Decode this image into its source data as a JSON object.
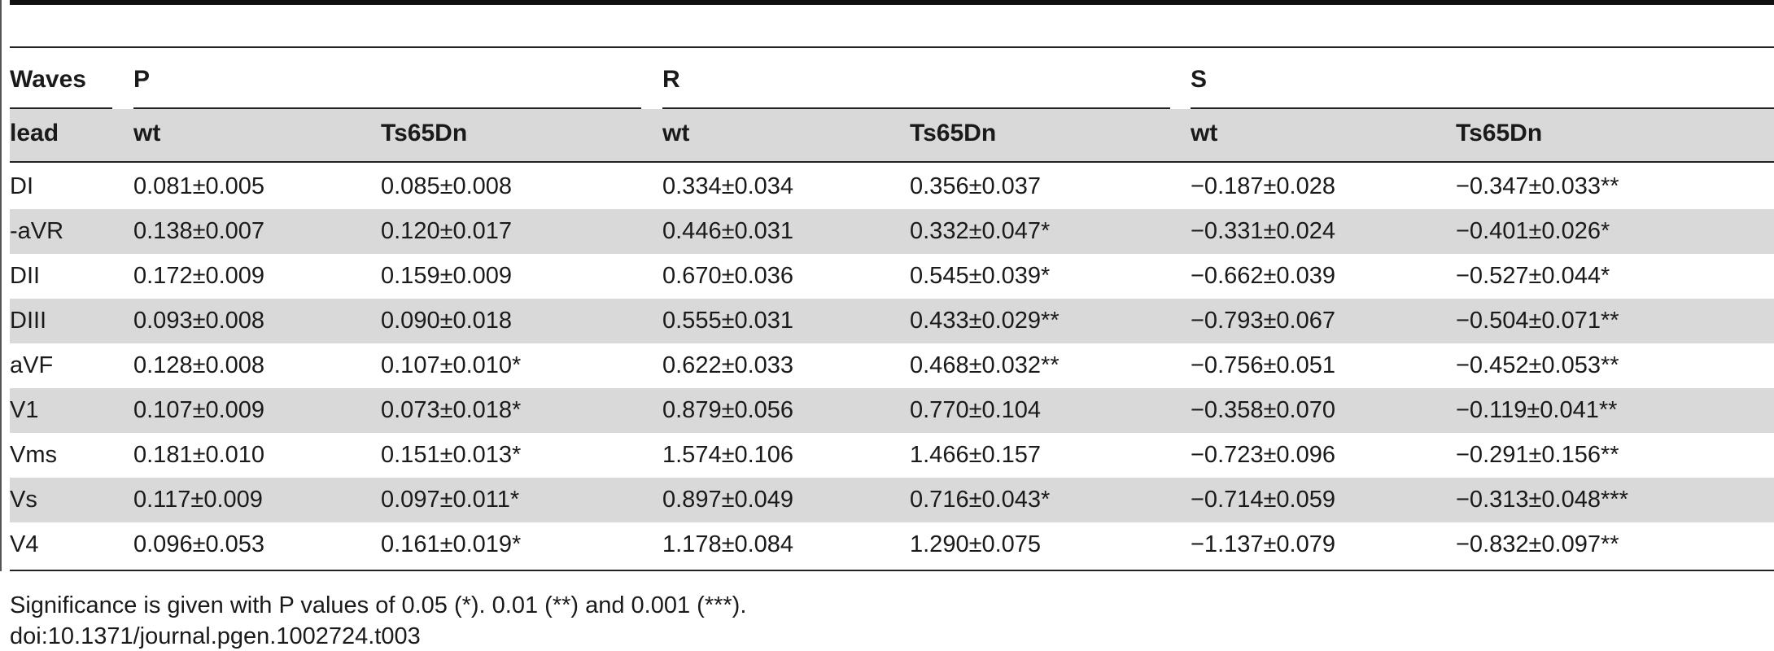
{
  "table": {
    "group_header": {
      "stub": "Waves",
      "groups": [
        "P",
        "R",
        "S"
      ]
    },
    "sub_header": {
      "stub": "lead",
      "columns": [
        "wt",
        "Ts65Dn",
        "wt",
        "Ts65Dn",
        "wt",
        "Ts65Dn"
      ]
    },
    "rows": [
      {
        "lead": "DI",
        "cells": [
          "0.081±0.005",
          "0.085±0.008",
          "0.334±0.034",
          "0.356±0.037",
          "−0.187±0.028",
          "−0.347±0.033**"
        ]
      },
      {
        "lead": "-aVR",
        "cells": [
          "0.138±0.007",
          "0.120±0.017",
          "0.446±0.031",
          "0.332±0.047*",
          "−0.331±0.024",
          "−0.401±0.026*"
        ]
      },
      {
        "lead": "DII",
        "cells": [
          "0.172±0.009",
          "0.159±0.009",
          "0.670±0.036",
          "0.545±0.039*",
          "−0.662±0.039",
          "−0.527±0.044*"
        ]
      },
      {
        "lead": "DIII",
        "cells": [
          "0.093±0.008",
          "0.090±0.018",
          "0.555±0.031",
          "0.433±0.029**",
          "−0.793±0.067",
          "−0.504±0.071**"
        ]
      },
      {
        "lead": "aVF",
        "cells": [
          "0.128±0.008",
          "0.107±0.010*",
          "0.622±0.033",
          "0.468±0.032**",
          "−0.756±0.051",
          "−0.452±0.053**"
        ]
      },
      {
        "lead": "V1",
        "cells": [
          "0.107±0.009",
          "0.073±0.018*",
          "0.879±0.056",
          "0.770±0.104",
          "−0.358±0.070",
          "−0.119±0.041**"
        ]
      },
      {
        "lead": "Vms",
        "cells": [
          "0.181±0.010",
          "0.151±0.013*",
          "1.574±0.106",
          "1.466±0.157",
          "−0.723±0.096",
          "−0.291±0.156**"
        ]
      },
      {
        "lead": "Vs",
        "cells": [
          "0.117±0.009",
          "0.097±0.011*",
          "0.897±0.049",
          "0.716±0.043*",
          "−0.714±0.059",
          "−0.313±0.048***"
        ]
      },
      {
        "lead": "V4",
        "cells": [
          "0.096±0.053",
          "0.161±0.019*",
          "1.178±0.084",
          "1.290±0.075",
          "−1.137±0.079",
          "−0.832±0.097**"
        ]
      }
    ],
    "striped_rows": [
      1,
      3,
      5,
      7
    ]
  },
  "footnote": "Significance is given with P values of 0.05 (*). 0.01 (**) and 0.001 (***).",
  "doi": "doi:10.1371/journal.pgen.1002724.t003"
}
